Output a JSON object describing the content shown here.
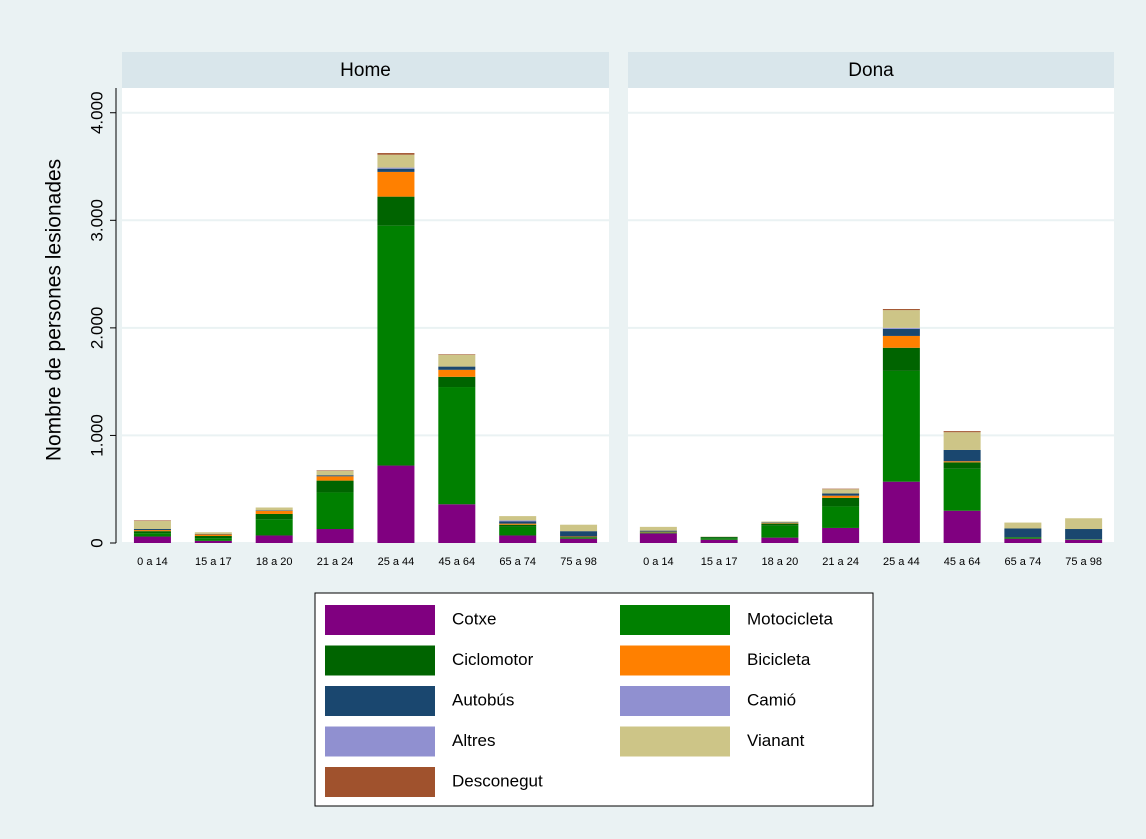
{
  "chart_data": {
    "type": "stacked-bar",
    "ylabel": "Nombre de persones lesionades",
    "panels": [
      "Home",
      "Dona"
    ],
    "categories": [
      "0 a 14",
      "15 a 17",
      "18 a 20",
      "21 a 24",
      "25 a 44",
      "45 a 64",
      "65 a 74",
      "75 a 98"
    ],
    "ylim": [
      0,
      4230
    ],
    "yticks": [
      0,
      {
        "value": 1000,
        "label": "1.000"
      },
      {
        "value": 2000,
        "label": "2.000"
      },
      {
        "value": 3000,
        "label": "3.000"
      },
      {
        "value": 4000,
        "label": "4.000"
      }
    ],
    "grid": true,
    "series": [
      {
        "name": "Cotxe",
        "color": "#800080",
        "values": [
          [
            60,
            20,
            70,
            130,
            720,
            360,
            70,
            40
          ],
          [
            90,
            30,
            50,
            140,
            570,
            300,
            40,
            30
          ]
        ]
      },
      {
        "name": "Motocicleta",
        "color": "#008000",
        "values": [
          [
            30,
            25,
            150,
            340,
            2230,
            1090,
            80,
            10
          ],
          [
            5,
            15,
            110,
            200,
            1030,
            390,
            10,
            5
          ]
        ]
      },
      {
        "name": "Ciclomotor",
        "color": "#006400",
        "values": [
          [
            20,
            20,
            50,
            110,
            270,
            95,
            20,
            5
          ],
          [
            5,
            10,
            20,
            80,
            215,
            60,
            5,
            0
          ]
        ]
      },
      {
        "name": "Bicicleta",
        "color": "#ff8000",
        "values": [
          [
            10,
            15,
            30,
            40,
            230,
            65,
            10,
            5
          ],
          [
            5,
            0,
            5,
            20,
            110,
            10,
            0,
            0
          ]
        ]
      },
      {
        "name": "Autobús",
        "color": "#1a476f",
        "values": [
          [
            10,
            5,
            5,
            10,
            30,
            30,
            20,
            50
          ],
          [
            10,
            2,
            5,
            20,
            65,
            105,
            80,
            95
          ]
        ]
      },
      {
        "name": "Camió",
        "color": "#9090d0",
        "values": [
          [
            0,
            0,
            0,
            0,
            5,
            0,
            5,
            0
          ],
          [
            0,
            0,
            0,
            0,
            5,
            0,
            0,
            0
          ]
        ]
      },
      {
        "name": "Altres",
        "color": "#9090d0",
        "values": [
          [
            0,
            0,
            0,
            0,
            5,
            0,
            5,
            0
          ],
          [
            0,
            0,
            0,
            0,
            5,
            0,
            0,
            0
          ]
        ]
      },
      {
        "name": "Vianant",
        "color": "#cdc587",
        "values": [
          [
            75,
            15,
            25,
            40,
            120,
            110,
            40,
            60
          ],
          [
            35,
            3,
            10,
            40,
            165,
            165,
            55,
            100
          ]
        ]
      },
      {
        "name": "Desconegut",
        "color": "#a0522d",
        "values": [
          [
            5,
            0,
            0,
            5,
            15,
            5,
            0,
            0
          ],
          [
            0,
            0,
            0,
            5,
            10,
            10,
            0,
            0
          ]
        ]
      }
    ],
    "legend": "bottom"
  }
}
